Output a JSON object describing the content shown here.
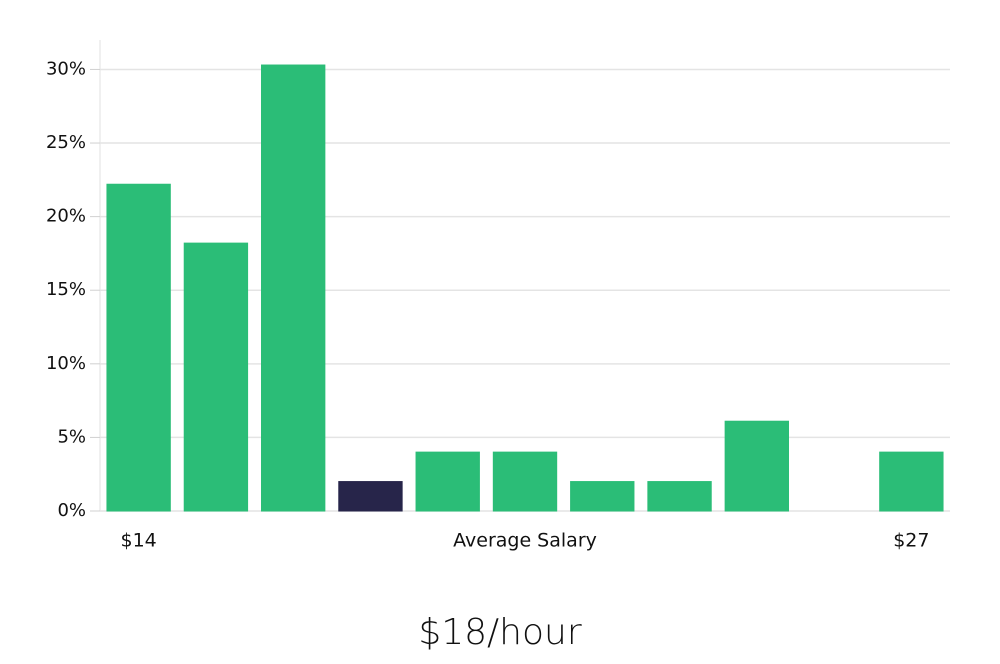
{
  "chart_data": {
    "type": "bar",
    "subtitle": "$18/hour",
    "x_label": "Average Salary",
    "categories": [
      "$14",
      null,
      null,
      null,
      null,
      null,
      null,
      null,
      null,
      null,
      "$27"
    ],
    "values": [
      22.2,
      18.2,
      30.3,
      2,
      4,
      4,
      2,
      2,
      6.1,
      0,
      4
    ],
    "colors": [
      "#2bbd77",
      "#2bbd77",
      "#2bbd77",
      "#27254a",
      "#2bbd77",
      "#2bbd77",
      "#2bbd77",
      "#2bbd77",
      "#2bbd77",
      "#2bbd77",
      "#2bbd77"
    ],
    "ylim": [
      0,
      32
    ],
    "yticks": [
      {
        "value": 0,
        "label": "0%"
      },
      {
        "value": 5,
        "label": "5%"
      },
      {
        "value": 10,
        "label": "10%"
      },
      {
        "value": 15,
        "label": "15%"
      },
      {
        "value": 20,
        "label": "20%"
      },
      {
        "value": 25,
        "label": "25%"
      },
      {
        "value": 30,
        "label": "30%"
      }
    ],
    "grid": true
  }
}
